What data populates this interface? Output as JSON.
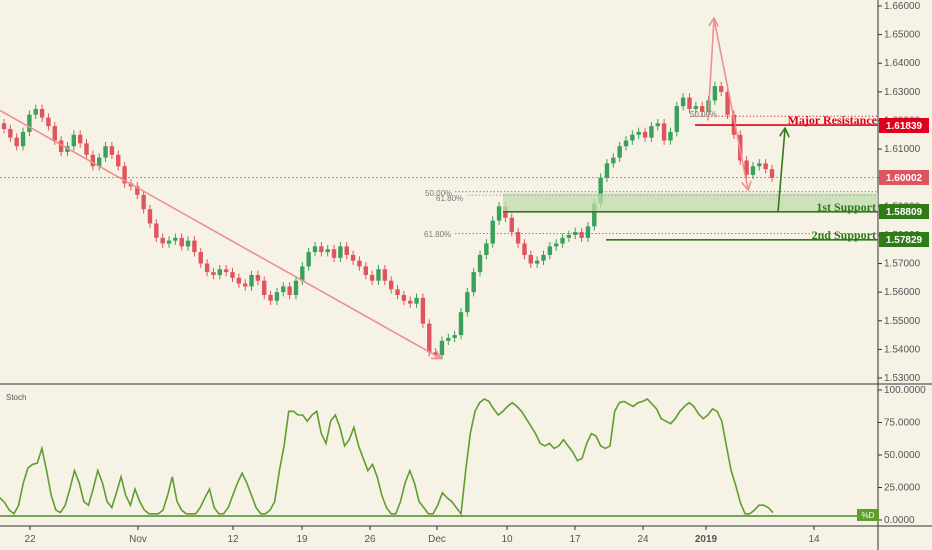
{
  "chart_data": [
    {
      "type": "candlestick",
      "price_axis": {
        "ticks": [
          "1.66000",
          "1.65000",
          "1.64000",
          "1.63000",
          "1.62000",
          "1.61000",
          "1.60000",
          "1.59000",
          "1.58000",
          "1.57000",
          "1.56000",
          "1.55000",
          "1.54000",
          "1.53000"
        ],
        "range": [
          1.525,
          1.663
        ]
      },
      "x_axis": {
        "ticks": [
          "22",
          "Nov",
          "12",
          "19",
          "26",
          "Dec",
          "10",
          "17",
          "24",
          "2019",
          "14"
        ]
      },
      "current_price": "1.60002",
      "levels": {
        "major_resistance": {
          "label": "Major Resistance",
          "price_label": "1.61839",
          "price": 1.61839
        },
        "first_support": {
          "label": "1st Support",
          "price_label": "1.58809",
          "price": 1.58809
        },
        "second_support": {
          "label": "2nd Support",
          "price_label": "1.57829",
          "price": 1.57829
        }
      },
      "fib_labels": {
        "fib_50_upper": "50.00%",
        "fib_50_lower": "50.00%",
        "fib_618_lower": "61.80%",
        "fib_618_upper": "61.80%"
      },
      "colors": {
        "up": "#3aa05a",
        "down": "#e0545e",
        "resistance": "#e0001b",
        "support": "#2f7a19",
        "trendline": "#ef8f93",
        "stoch": "#5f9e2e"
      },
      "close_series": [
        1.617,
        1.614,
        1.611,
        1.616,
        1.622,
        1.624,
        1.621,
        1.618,
        1.613,
        1.609,
        1.611,
        1.615,
        1.612,
        1.608,
        1.604,
        1.607,
        1.611,
        1.608,
        1.604,
        1.598,
        1.597,
        1.594,
        1.589,
        1.584,
        1.579,
        1.577,
        1.578,
        1.579,
        1.576,
        1.578,
        1.574,
        1.57,
        1.567,
        1.566,
        1.568,
        1.567,
        1.565,
        1.563,
        1.562,
        1.566,
        1.564,
        1.559,
        1.557,
        1.56,
        1.562,
        1.559,
        1.564,
        1.569,
        1.574,
        1.576,
        1.574,
        1.575,
        1.572,
        1.576,
        1.573,
        1.571,
        1.569,
        1.566,
        1.564,
        1.568,
        1.564,
        1.561,
        1.559,
        1.557,
        1.556,
        1.558,
        1.549,
        1.539,
        1.538,
        1.543,
        1.544,
        1.545,
        1.553,
        1.56,
        1.567,
        1.573,
        1.577,
        1.585,
        1.59,
        1.586,
        1.581,
        1.577,
        1.573,
        1.57,
        1.571,
        1.573,
        1.576,
        1.577,
        1.579,
        1.58,
        1.581,
        1.579,
        1.583,
        1.591,
        1.6,
        1.605,
        1.607,
        1.611,
        1.613,
        1.615,
        1.616,
        1.614,
        1.618,
        1.619,
        1.613,
        1.616,
        1.625,
        1.628,
        1.624,
        1.625,
        1.623,
        1.627,
        1.632,
        1.63,
        1.622,
        1.615,
        1.606,
        1.601,
        1.604,
        1.605,
        1.603,
        1.6
      ],
      "volume_type": "candles"
    },
    {
      "type": "line",
      "title": "Stoch",
      "series": [
        {
          "name": "%D",
          "values": [
            18,
            14,
            8,
            5,
            12,
            30,
            42,
            45,
            46,
            58,
            40,
            20,
            8,
            6,
            12,
            25,
            40,
            30,
            15,
            12,
            25,
            40,
            30,
            15,
            10,
            22,
            35,
            20,
            12,
            25,
            15,
            8,
            5,
            5,
            5,
            8,
            20,
            35,
            15,
            8,
            5,
            5,
            5,
            10,
            18,
            25,
            10,
            5,
            5,
            10,
            20,
            30,
            38,
            30,
            20,
            10,
            5,
            5,
            8,
            15,
            40,
            60,
            88,
            88,
            85,
            85,
            80,
            85,
            88,
            70,
            62,
            80,
            85,
            75,
            60,
            65,
            75,
            60,
            50,
            40,
            45,
            35,
            20,
            10,
            5,
            5,
            15,
            30,
            40,
            30,
            15,
            10,
            5,
            5,
            12,
            22,
            18,
            15,
            10,
            5,
            40,
            70,
            88,
            95,
            98,
            96,
            90,
            85,
            88,
            92,
            95,
            92,
            88,
            82,
            76,
            70,
            62,
            60,
            62,
            58,
            60,
            65,
            60,
            55,
            48,
            50,
            62,
            70,
            68,
            60,
            58,
            60,
            88,
            95,
            96,
            94,
            92,
            95,
            96,
            98,
            94,
            90,
            82,
            80,
            78,
            82,
            88,
            92,
            95,
            92,
            86,
            82,
            85,
            90,
            88,
            80,
            60,
            40,
            28,
            14,
            5,
            5,
            8,
            12,
            12,
            10,
            6
          ]
        }
      ],
      "y_axis": {
        "ticks": [
          "100.0000",
          "75.0000",
          "50.0000",
          "25.0000",
          "0.0000"
        ],
        "range": [
          0,
          100
        ]
      },
      "d_label": "%D"
    }
  ]
}
